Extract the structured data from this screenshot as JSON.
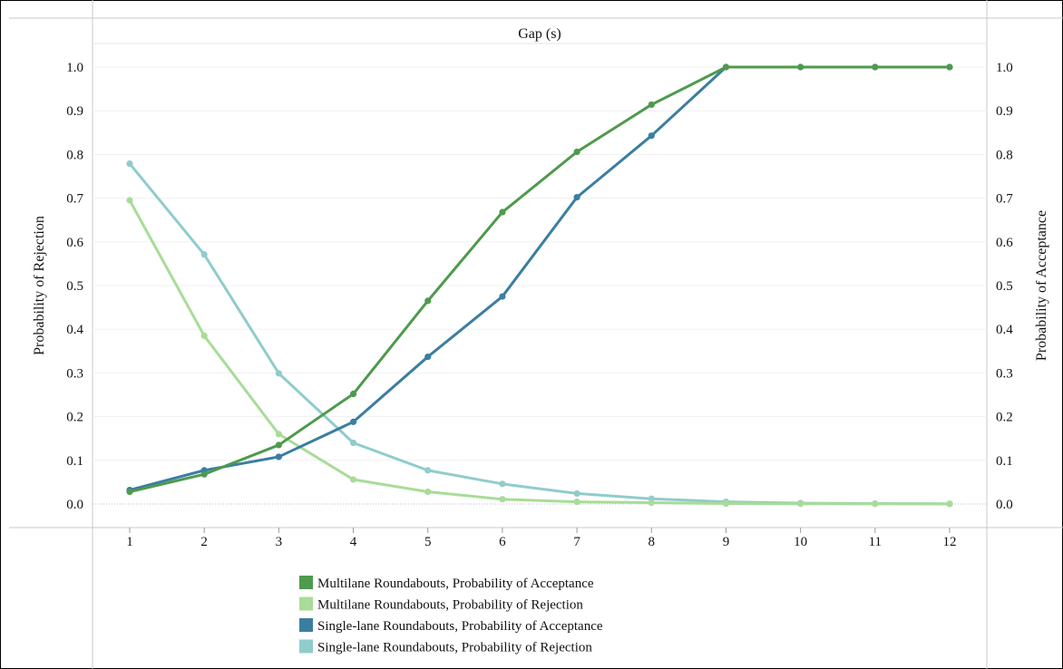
{
  "chart_data": {
    "type": "line",
    "title": "Gap (s)",
    "xlabel": "",
    "ylabel_left": "Probability of Rejection",
    "ylabel_right": "Probability of Acceptance",
    "x": [
      1,
      2,
      3,
      4,
      5,
      6,
      7,
      8,
      9,
      10,
      11,
      12
    ],
    "x_tick_labels": [
      "1",
      "2",
      "3",
      "4",
      "5",
      "6",
      "7",
      "8",
      "9",
      "10",
      "11",
      "12"
    ],
    "ylim": [
      0,
      1
    ],
    "y_tick_labels": [
      "0.0",
      "0.1",
      "0.2",
      "0.3",
      "0.4",
      "0.5",
      "0.6",
      "0.7",
      "0.8",
      "0.9",
      "1.0"
    ],
    "grid": true,
    "legend_position": "bottom-center",
    "series": [
      {
        "name": "Multilane Roundabouts, Probability of Acceptance",
        "color": "#4e9a4e",
        "axis": "right",
        "values": [
          0.028,
          0.068,
          0.135,
          0.252,
          0.465,
          0.668,
          0.806,
          0.914,
          1.0,
          1.0,
          1.0,
          1.0
        ]
      },
      {
        "name": "Multilane Roundabouts, Probability of Rejection",
        "color": "#a8dc98",
        "axis": "left",
        "values": [
          0.695,
          0.385,
          0.16,
          0.056,
          0.028,
          0.011,
          0.005,
          0.003,
          0.001,
          0.0005,
          0.0003,
          0.0001
        ]
      },
      {
        "name": "Single-lane Roundabouts, Probability of Acceptance",
        "color": "#3a7ea1",
        "axis": "right",
        "values": [
          0.032,
          0.077,
          0.108,
          0.188,
          0.337,
          0.475,
          0.702,
          0.843,
          1.0,
          1.0,
          1.0,
          1.0
        ]
      },
      {
        "name": "Single-lane Roundabouts, Probability of Rejection",
        "color": "#90cccc",
        "axis": "left",
        "values": [
          0.779,
          0.571,
          0.299,
          0.14,
          0.077,
          0.046,
          0.024,
          0.012,
          0.005,
          0.002,
          0.001,
          0.0005
        ]
      }
    ]
  }
}
